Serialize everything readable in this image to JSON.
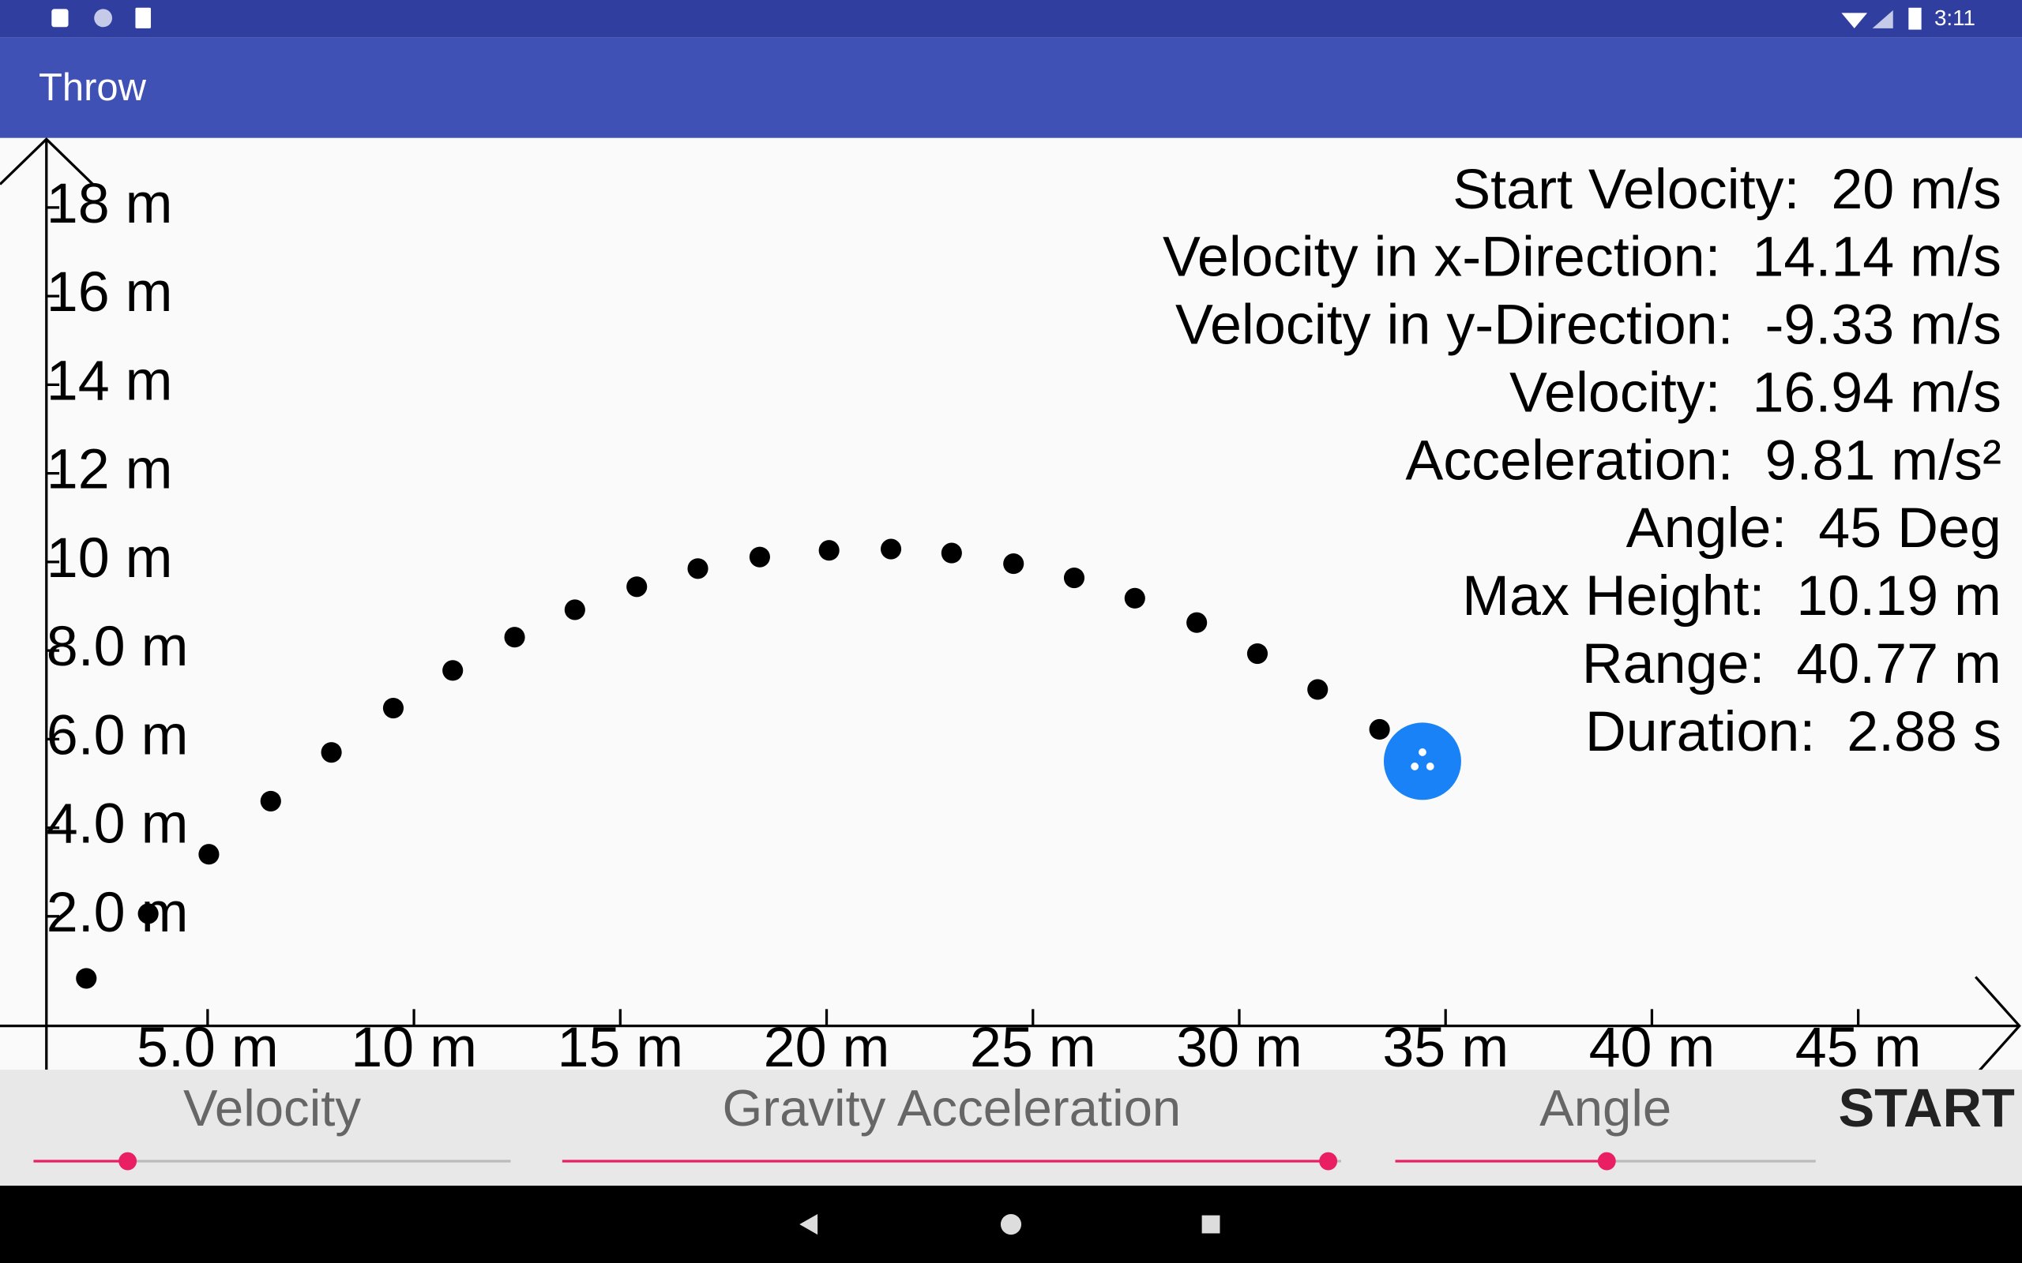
{
  "status_bar": {
    "time": "3:11"
  },
  "app_bar": {
    "title": "Throw"
  },
  "plot": {
    "xticks": [
      {
        "value": 5,
        "label": "5.0 m"
      },
      {
        "value": 10,
        "label": "10 m"
      },
      {
        "value": 15,
        "label": "15 m"
      },
      {
        "value": 20,
        "label": "20 m"
      },
      {
        "value": 25,
        "label": "25 m"
      },
      {
        "value": 30,
        "label": "30 m"
      },
      {
        "value": 35,
        "label": "35 m"
      },
      {
        "value": 40,
        "label": "40 m"
      },
      {
        "value": 45,
        "label": "45 m"
      }
    ],
    "yticks": [
      {
        "value": 2,
        "label": "2.0 m"
      },
      {
        "value": 4,
        "label": "4.0 m"
      },
      {
        "value": 6,
        "label": "6.0 m"
      },
      {
        "value": 8,
        "label": "8.0 m"
      },
      {
        "value": 10,
        "label": "10 m"
      },
      {
        "value": 12,
        "label": "12 m"
      },
      {
        "value": 14,
        "label": "14 m"
      },
      {
        "value": 16,
        "label": "16 m"
      },
      {
        "value": 18,
        "label": "18 m"
      }
    ],
    "points": {
      "x": [
        2.06,
        3.56,
        5.03,
        6.53,
        8.0,
        9.5,
        10.94,
        12.44,
        13.9,
        15.4,
        16.88,
        18.38,
        20.06,
        21.56,
        23.03,
        24.53,
        26.0,
        27.47,
        28.97,
        30.44,
        31.9,
        33.4
      ],
      "y": [
        0.6,
        2.06,
        3.4,
        4.6,
        5.7,
        6.7,
        7.55,
        8.3,
        8.92,
        9.44,
        9.85,
        10.11,
        10.26,
        10.29,
        10.2,
        9.96,
        9.64,
        9.18,
        8.63,
        7.93,
        7.12,
        6.22
      ]
    },
    "ball": {
      "x": 34.44,
      "y": 5.5
    }
  },
  "info": [
    "Start Velocity:  20 m/s",
    "Velocity in x-Direction:  14.14 m/s",
    "Velocity in y-Direction:  -9.33 m/s",
    "Velocity:  16.94 m/s",
    "Acceleration:  9.81 m/s²",
    "Angle:  45 Deg",
    "Max Height:  10.19 m",
    "Range:  40.77 m",
    "Duration:  2.88 s"
  ],
  "controls": {
    "sliders": [
      "Velocity",
      "Gravity Acceleration",
      "Angle"
    ],
    "button": "START"
  }
}
